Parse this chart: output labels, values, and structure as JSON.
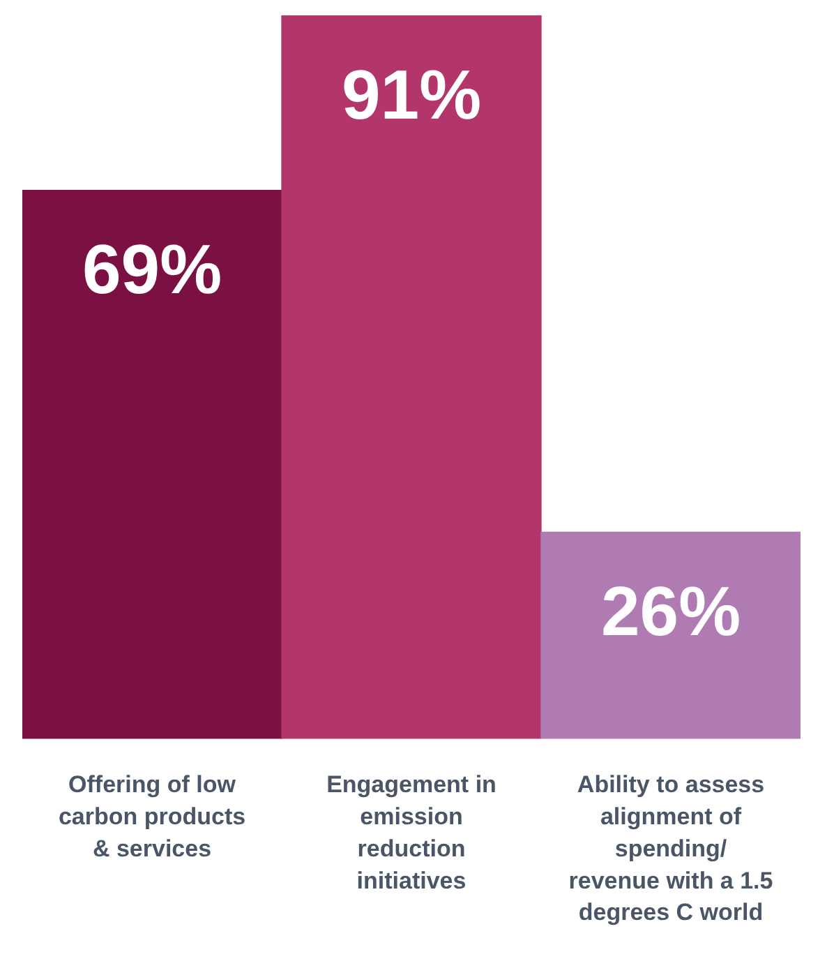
{
  "chart_data": {
    "type": "bar",
    "categories": [
      "Offering of low carbon products & services",
      "Engagement in emission reduction initiatives",
      "Ability to assess alignment of spending/ revenue with a 1.5 degrees C world"
    ],
    "values": [
      69,
      91,
      26
    ],
    "colors": [
      "#7b1042",
      "#b3366b",
      "#b07ab2"
    ],
    "value_labels": [
      "69%",
      "91%",
      "26%"
    ],
    "ylim": [
      0,
      91
    ],
    "tick_labels": "x",
    "grid": false,
    "legend": false
  }
}
